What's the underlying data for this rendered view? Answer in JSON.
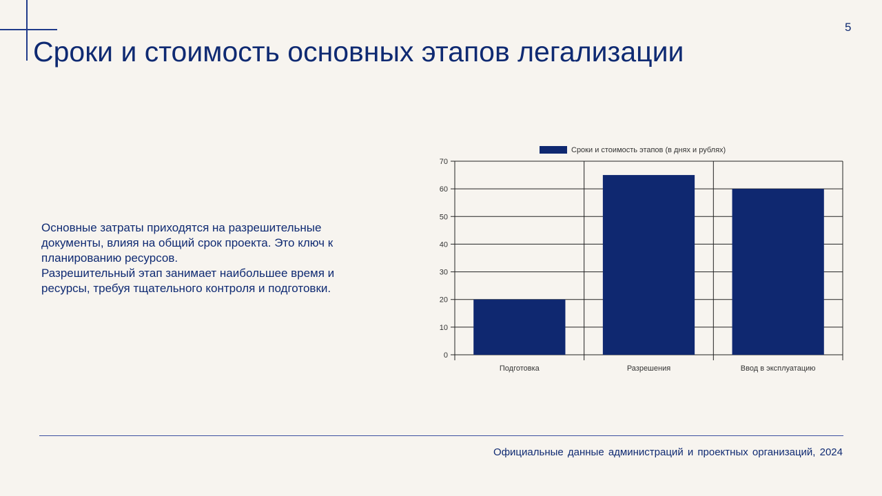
{
  "slide": {
    "title": "Сроки и стоимость основных этапов легализации",
    "page_number": "5",
    "body": [
      "Основные затраты приходятся на разрешительные документы, влияя на общий срок проекта. Это ключ к планированию ресурсов.",
      "Разрешительный этап занимает наибольшее время и ресурсы, требуя тщательного контроля и подготовки."
    ],
    "source": "Официальные данные администраций и проектных организаций, 2024",
    "accent_color": "#0f2a72"
  },
  "chart_data": {
    "type": "bar",
    "categories": [
      "Подготовка",
      "Разрешения",
      "Ввод в эксплуатацию"
    ],
    "series": [
      {
        "name": "Сроки и стоимость этапов (в днях и рублях)",
        "values": [
          20,
          65,
          60
        ],
        "color": "#0f2870"
      }
    ],
    "ylim": [
      0,
      70
    ],
    "yticks": [
      0,
      10,
      20,
      30,
      40,
      50,
      60,
      70
    ],
    "grid": true,
    "legend": "top-center",
    "title": "",
    "xlabel": "",
    "ylabel": ""
  }
}
